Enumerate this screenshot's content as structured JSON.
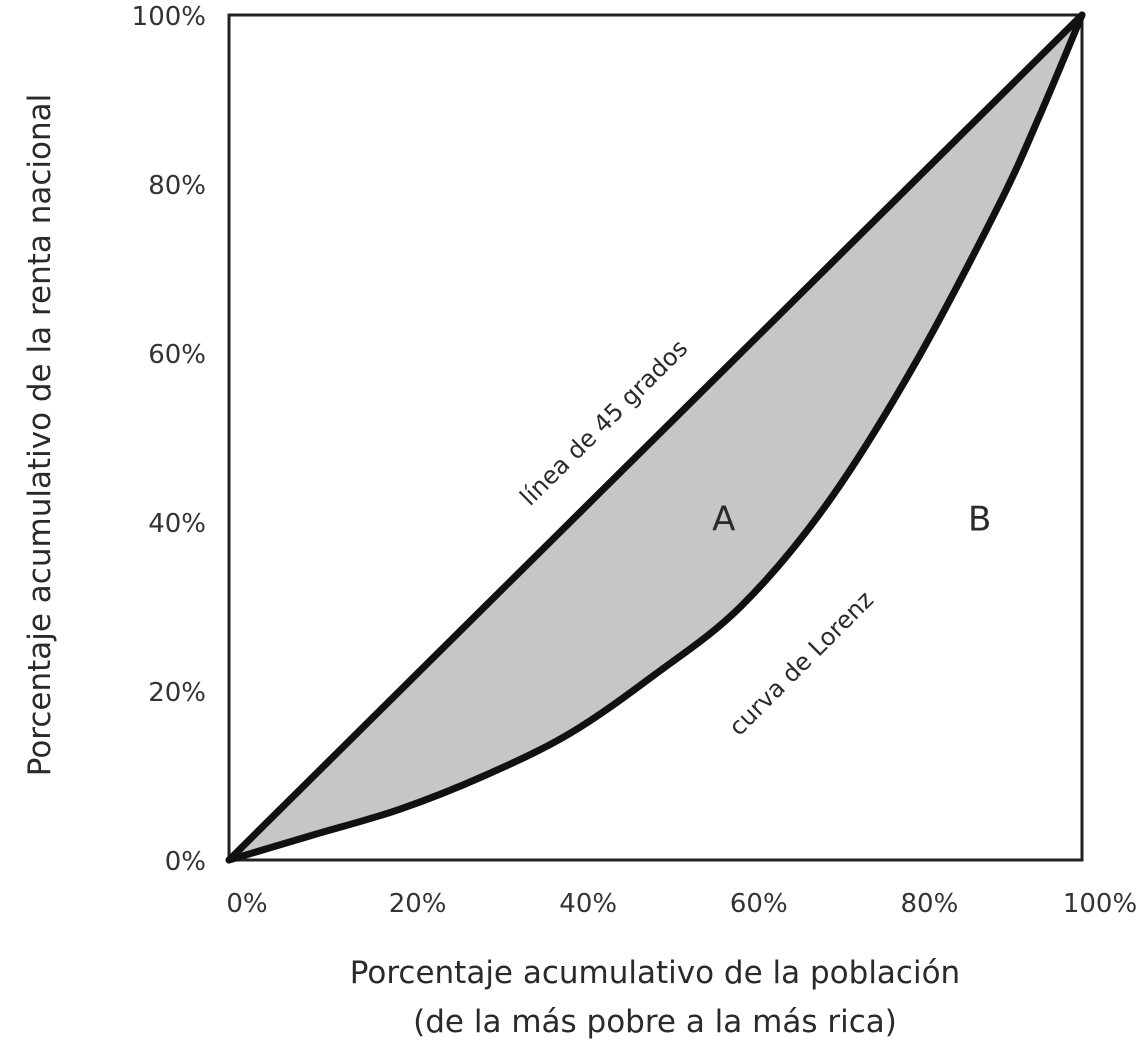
{
  "chart_data": {
    "type": "line",
    "xlabel_line1": "Porcentaje acumulativo de la población",
    "xlabel_line2": "(de la más pobre a la más rica)",
    "ylabel": "Porcentaje acumulativo de la renta nacional",
    "x_ticks": [
      "0%",
      "20%",
      "40%",
      "60%",
      "80%",
      "100%"
    ],
    "y_ticks": [
      "0%",
      "20%",
      "40%",
      "60%",
      "80%",
      "100%"
    ],
    "xlim": [
      0,
      100
    ],
    "ylim": [
      0,
      100
    ],
    "series": [
      {
        "name": "línea de 45 grados",
        "x": [
          0,
          100
        ],
        "y": [
          0,
          100
        ]
      },
      {
        "name": "curva de Lorenz",
        "x": [
          0,
          10,
          20,
          30,
          40,
          50,
          60,
          70,
          80,
          90,
          95,
          100
        ],
        "y": [
          0,
          3,
          6,
          10,
          15,
          22,
          30,
          42,
          58,
          77,
          88,
          100
        ]
      }
    ],
    "annotations": [
      {
        "text": "A",
        "x": 58,
        "y": 39
      },
      {
        "text": "B",
        "x": 88,
        "y": 39
      }
    ],
    "shaded_region": {
      "between": [
        "línea de 45 grados",
        "curva de Lorenz"
      ],
      "color": "#c6c6c6"
    },
    "grid": false
  },
  "colors": {
    "line": "#111111",
    "fill": "#c6c6c6",
    "frame": "#222222"
  }
}
